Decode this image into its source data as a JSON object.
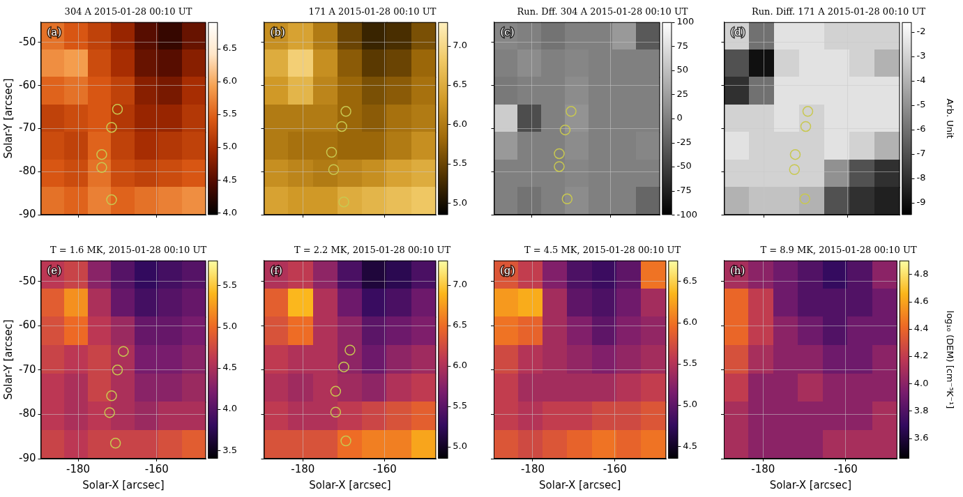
{
  "chart_data": [
    {
      "type": "heatmap",
      "title": "304 A 2015-01-28 00:10 UT",
      "label": "(a)",
      "ylabel": "Solar-Y [arcsec]",
      "xlim": [
        -189.5,
        -147.5
      ],
      "ylim": [
        -90,
        -45.3
      ],
      "xticks": [
        -180,
        -160
      ],
      "yticks": [
        -90,
        -80,
        -70,
        -60,
        -50
      ],
      "tick_labels": "y",
      "grid": true,
      "cells": [
        [
          5.6,
          5.4,
          5.2,
          4.9,
          4.5,
          4.3,
          4.6
        ],
        [
          5.8,
          5.9,
          5.3,
          5.0,
          4.6,
          4.5,
          4.8
        ],
        [
          5.5,
          5.6,
          5.4,
          5.2,
          4.8,
          4.7,
          5.0
        ],
        [
          5.2,
          5.3,
          5.4,
          5.1,
          4.9,
          4.9,
          5.1
        ],
        [
          5.3,
          5.2,
          5.5,
          5.2,
          5.0,
          5.1,
          5.2
        ],
        [
          5.4,
          5.3,
          5.6,
          5.3,
          5.2,
          5.3,
          5.4
        ],
        [
          5.6,
          5.5,
          5.7,
          5.5,
          5.6,
          5.7,
          5.8
        ]
      ],
      "colorbar": {
        "range": [
          3.97,
          6.9
        ],
        "ticks": [
          {
            "value": 4,
            "label": "4.0"
          },
          4.5,
          {
            "value": 5,
            "label": "5.0"
          },
          5.5,
          {
            "value": 6,
            "label": "6.0"
          },
          6.5
        ],
        "colors": [
          "#000000",
          "#500a00",
          "#a02800",
          "#dc5a14",
          "#f5a050",
          "#ffe6c8",
          "#ffffff"
        ]
      },
      "series": [
        {
          "x": [
            -170,
            -171.5,
            -174,
            -174,
            -171.5
          ],
          "y": [
            -65.5,
            -69.7,
            -76,
            -79,
            -86.5
          ],
          "color": "#c8c850",
          "marker": "open_circle"
        }
      ]
    },
    {
      "type": "heatmap",
      "title": "171 A 2015-01-28 00:10 UT",
      "label": "(b)",
      "xlim": [
        -189.5,
        -147.5
      ],
      "ylim": [
        -90,
        -45.3
      ],
      "xticks": [
        -180,
        -160
      ],
      "yticks": [
        -90,
        -80,
        -70,
        -60,
        -50
      ],
      "tick_labels": false,
      "grid": true,
      "cells": [
        [
          6.2,
          6.4,
          6.0,
          5.5,
          5.2,
          5.3,
          5.6
        ],
        [
          6.5,
          6.9,
          6.2,
          5.7,
          5.4,
          5.5,
          5.8
        ],
        [
          6.3,
          6.6,
          6.1,
          5.8,
          5.6,
          5.7,
          5.9
        ],
        [
          6.0,
          6.0,
          6.0,
          5.8,
          5.7,
          5.9,
          6.0
        ],
        [
          6.0,
          5.9,
          5.9,
          5.8,
          5.8,
          6.0,
          6.2
        ],
        [
          6.2,
          6.1,
          6.0,
          6.1,
          6.2,
          6.4,
          6.5
        ],
        [
          6.4,
          6.3,
          6.3,
          6.5,
          6.6,
          6.7,
          6.8
        ]
      ],
      "colorbar": {
        "range": [
          4.85,
          7.3
        ],
        "ticks": [
          {
            "value": 5,
            "label": "5.0"
          },
          5.5,
          {
            "value": 6,
            "label": "6.0"
          },
          6.5,
          {
            "value": 7,
            "label": "7.0"
          }
        ],
        "colors": [
          "#000000",
          "#503200",
          "#a06a0a",
          "#d29b28",
          "#f0c864",
          "#fff0be"
        ]
      },
      "series": [
        {
          "x": [
            -169.5,
            -170.5,
            -173,
            -172.5,
            -170
          ],
          "y": [
            -66,
            -69.5,
            -75.5,
            -79.5,
            -87
          ],
          "color": "#c8c850",
          "marker": "open_circle"
        }
      ]
    },
    {
      "type": "heatmap",
      "title": "Run. Dff. 304 A 2015-01-28 00:10 UT",
      "label": "(c)",
      "xlim": [
        -189.5,
        -147.5
      ],
      "ylim": [
        -90,
        -45.3
      ],
      "xticks": [
        -180,
        -160
      ],
      "yticks": [
        -90,
        -80,
        -70,
        -60,
        -50
      ],
      "tick_labels": false,
      "grid": true,
      "cells": [
        [
          5,
          0,
          -10,
          0,
          0,
          20,
          -30
        ],
        [
          0,
          10,
          0,
          5,
          0,
          0,
          0
        ],
        [
          -5,
          0,
          0,
          10,
          0,
          0,
          0
        ],
        [
          60,
          -40,
          0,
          15,
          0,
          0,
          0
        ],
        [
          20,
          0,
          0,
          10,
          0,
          0,
          5
        ],
        [
          0,
          0,
          0,
          5,
          0,
          0,
          0
        ],
        [
          0,
          -10,
          0,
          10,
          0,
          0,
          -20
        ]
      ],
      "colorbar": {
        "range": [
          -100,
          100
        ],
        "ticks": [
          -100,
          -75,
          -50,
          -25,
          0,
          25,
          50,
          75,
          100
        ],
        "colors": [
          "#000000",
          "#ffffff"
        ]
      },
      "series": [
        {
          "x": [
            -170,
            -171.5,
            -173,
            -173,
            -171
          ],
          "y": [
            -66,
            -70.3,
            -75.8,
            -78.8,
            -86.3
          ],
          "color": "#c8c850",
          "marker": "open_circle"
        }
      ]
    },
    {
      "type": "heatmap",
      "title": "Run. Diff. 171 A 2015-01-28 00:10 UT",
      "label": "(d)",
      "xlim": [
        -189.5,
        -147.5
      ],
      "ylim": [
        -90,
        -45.3
      ],
      "xticks": [
        -180,
        -160
      ],
      "yticks": [
        -90,
        -80,
        -70,
        -60,
        -50
      ],
      "tick_labels": false,
      "grid": true,
      "cells": [
        [
          -3,
          -6,
          -2.5,
          -2.5,
          -3,
          -3,
          -3
        ],
        [
          -7,
          -9,
          -3,
          -2.5,
          -2.5,
          -3,
          -4
        ],
        [
          -8,
          -6,
          -2.5,
          -2.5,
          -2.5,
          -2.5,
          -2.5
        ],
        [
          -3,
          -3,
          -2.5,
          -3,
          -2.5,
          -2.5,
          -2.5
        ],
        [
          -2.5,
          -3,
          -3,
          -3,
          -2.5,
          -3,
          -4
        ],
        [
          -3,
          -3,
          -3,
          -3,
          -5,
          -7,
          -8
        ],
        [
          -4,
          -3.5,
          -3.5,
          -4,
          -7,
          -8,
          -8.5
        ]
      ],
      "colorbar": {
        "range": [
          -9.5,
          -1.6
        ],
        "ticks": [
          -9,
          -8,
          -7,
          -6,
          -5,
          -4,
          -3,
          -2
        ],
        "label": "Arb. Unit",
        "colors": [
          "#000000",
          "#ffffff"
        ]
      },
      "series": [
        {
          "x": [
            -169.5,
            -170,
            -172.5,
            -172.7,
            -170.2
          ],
          "y": [
            -66,
            -69.5,
            -76,
            -79.5,
            -86.3
          ],
          "color": "#c8c850",
          "marker": "open_circle"
        }
      ]
    },
    {
      "type": "heatmap",
      "title": "T = 1.6 MK, 2015-01-28 00:10 UT",
      "label": "(e)",
      "xlabel": "Solar-X [arcsec]",
      "ylabel": "Solar-Y [arcsec]",
      "xlim": [
        -189.5,
        -147.5
      ],
      "ylim": [
        -90,
        -45.3
      ],
      "xticks": [
        -180,
        -160
      ],
      "yticks": [
        -90,
        -80,
        -70,
        -60,
        -50
      ],
      "tick_labels": true,
      "grid": true,
      "cells": [
        [
          4.6,
          4.7,
          4.3,
          4.0,
          3.8,
          3.9,
          4.0
        ],
        [
          4.9,
          5.2,
          4.5,
          4.1,
          3.9,
          4.0,
          4.1
        ],
        [
          4.8,
          5.0,
          4.6,
          4.4,
          4.1,
          4.1,
          4.2
        ],
        [
          4.7,
          4.6,
          4.7,
          4.5,
          4.2,
          4.2,
          4.3
        ],
        [
          4.6,
          4.5,
          4.7,
          4.5,
          4.3,
          4.3,
          4.4
        ],
        [
          4.6,
          4.5,
          4.6,
          4.5,
          4.4,
          4.5,
          4.5
        ],
        [
          4.7,
          4.6,
          4.7,
          4.7,
          4.7,
          4.8,
          4.9
        ]
      ],
      "colorbar": {
        "range": [
          3.4,
          5.8
        ],
        "ticks": [
          3.5,
          {
            "value": 4,
            "label": "4.0"
          },
          4.5,
          {
            "value": 5,
            "label": "5.0"
          },
          5.5
        ],
        "colors": [
          "#000004",
          "#320a5e",
          "#781c6d",
          "#bc3754",
          "#ed6925",
          "#fbb61a",
          "#fcffa4"
        ]
      },
      "series": [
        {
          "x": [
            -168.5,
            -170,
            -171.5,
            -172,
            -170.5
          ],
          "y": [
            -65.8,
            -70,
            -75.8,
            -79.6,
            -86.5
          ],
          "color": "#c8c850",
          "marker": "open_circle"
        }
      ]
    },
    {
      "type": "heatmap",
      "title": "T = 2.2 MK, 2015-01-28 00:10 UT",
      "label": "(f)",
      "xlabel": "Solar-X [arcsec]",
      "xlim": [
        -189.5,
        -147.5
      ],
      "ylim": [
        -90,
        -45.3
      ],
      "xticks": [
        -180,
        -160
      ],
      "yticks": [
        -90,
        -80,
        -70,
        -60,
        -50
      ],
      "tick_labels": "x",
      "grid": true,
      "cells": [
        [
          6.0,
          6.1,
          5.8,
          5.4,
          5.1,
          5.2,
          5.4
        ],
        [
          6.4,
          6.9,
          6.0,
          5.6,
          5.3,
          5.4,
          5.6
        ],
        [
          6.3,
          6.5,
          6.0,
          5.8,
          5.5,
          5.6,
          5.7
        ],
        [
          6.1,
          6.0,
          6.0,
          5.8,
          5.6,
          5.8,
          5.9
        ],
        [
          6.0,
          5.9,
          6.0,
          5.9,
          5.8,
          6.0,
          6.1
        ],
        [
          6.1,
          6.0,
          6.0,
          6.1,
          6.2,
          6.3,
          6.4
        ],
        [
          6.3,
          6.3,
          6.3,
          6.5,
          6.6,
          6.6,
          6.8
        ]
      ],
      "colorbar": {
        "range": [
          4.85,
          7.3
        ],
        "ticks": [
          {
            "value": 5,
            "label": "5.0"
          },
          5.5,
          {
            "value": 6,
            "label": "6.0"
          },
          6.5,
          {
            "value": 7,
            "label": "7.0"
          }
        ],
        "colors": [
          "#000004",
          "#320a5e",
          "#781c6d",
          "#bc3754",
          "#ed6925",
          "#fbb61a",
          "#fcffa4"
        ]
      },
      "series": [
        {
          "x": [
            -168.5,
            -170,
            -172,
            -172,
            -169.5
          ],
          "y": [
            -65.5,
            -69.3,
            -74.8,
            -79.5,
            -86
          ],
          "color": "#c8c850",
          "marker": "open_circle"
        }
      ]
    },
    {
      "type": "heatmap",
      "title": "T = 4.5 MK, 2015-01-28 00:10 UT",
      "label": "(g)",
      "xlabel": "Solar-X [arcsec]",
      "xlim": [
        -189.5,
        -147.5
      ],
      "ylim": [
        -90,
        -45.3
      ],
      "xticks": [
        -180,
        -160
      ],
      "yticks": [
        -90,
        -80,
        -70,
        -60,
        -50
      ],
      "tick_labels": "x",
      "grid": true,
      "cells": [
        [
          5.8,
          5.6,
          5.2,
          4.9,
          4.8,
          5.0,
          6.0
        ],
        [
          6.2,
          6.3,
          5.4,
          5.0,
          4.9,
          5.1,
          5.4
        ],
        [
          6.0,
          5.9,
          5.4,
          5.2,
          5.0,
          5.2,
          5.3
        ],
        [
          5.7,
          5.5,
          5.4,
          5.3,
          5.2,
          5.3,
          5.4
        ],
        [
          5.6,
          5.4,
          5.4,
          5.4,
          5.4,
          5.5,
          5.6
        ],
        [
          5.6,
          5.5,
          5.6,
          5.6,
          5.7,
          5.7,
          5.8
        ],
        [
          5.8,
          5.7,
          5.8,
          5.9,
          6.0,
          5.9,
          6.0
        ]
      ],
      "colorbar": {
        "range": [
          4.35,
          6.75
        ],
        "ticks": [
          4.5,
          {
            "value": 5,
            "label": "5.0"
          },
          5.5,
          {
            "value": 6,
            "label": "6.0"
          },
          6.5
        ],
        "colors": [
          "#000004",
          "#320a5e",
          "#781c6d",
          "#bc3754",
          "#ed6925",
          "#fbb61a",
          "#fcffa4"
        ]
      },
      "series": []
    },
    {
      "type": "heatmap",
      "title": "T = 8.9 MK, 2015-01-28 00:10 UT",
      "label": "(h)",
      "xlabel": "Solar-X [arcsec]",
      "xlim": [
        -189.5,
        -147.5
      ],
      "ylim": [
        -90,
        -45.3
      ],
      "xticks": [
        -180,
        -160
      ],
      "yticks": [
        -90,
        -80,
        -70,
        -60,
        -50
      ],
      "tick_labels": "x",
      "grid": true,
      "cells": [
        [
          4.1,
          4.0,
          3.9,
          3.8,
          3.7,
          3.8,
          4.0
        ],
        [
          4.4,
          4.2,
          3.9,
          3.8,
          3.8,
          3.8,
          3.9
        ],
        [
          4.4,
          4.2,
          4.0,
          3.9,
          3.8,
          3.9,
          3.9
        ],
        [
          4.3,
          4.1,
          4.0,
          4.0,
          3.9,
          3.9,
          4.0
        ],
        [
          4.2,
          4.0,
          4.0,
          4.1,
          4.0,
          4.0,
          4.0
        ],
        [
          4.1,
          4.0,
          4.0,
          4.0,
          4.0,
          4.0,
          4.1
        ],
        [
          4.1,
          4.0,
          4.0,
          4.0,
          4.1,
          4.1,
          4.1
        ]
      ],
      "colorbar": {
        "range": [
          3.45,
          4.9
        ],
        "ticks": [
          3.6,
          3.8,
          {
            "value": 4,
            "label": "4.0"
          },
          4.2,
          4.4,
          4.6,
          4.8
        ],
        "label": "log₁₀ (DEM) [cm⁻⁵K⁻¹]",
        "colors": [
          "#000004",
          "#320a5e",
          "#781c6d",
          "#bc3754",
          "#ed6925",
          "#fbb61a",
          "#fcffa4"
        ]
      },
      "series": []
    }
  ]
}
